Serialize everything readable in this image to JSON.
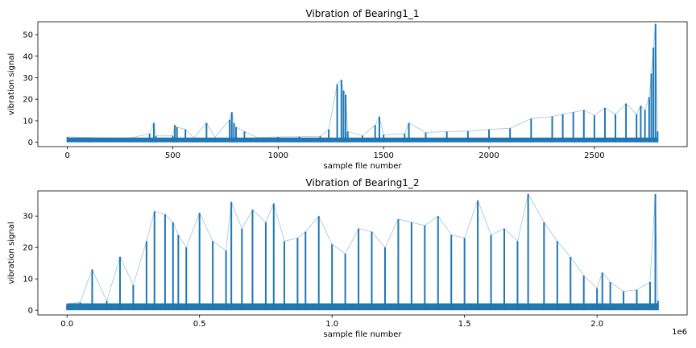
{
  "chart_data": [
    {
      "type": "line",
      "title": "Vibration of Bearing1_1",
      "xlabel": "sample file number",
      "ylabel": "vibration signal",
      "xlim": [
        -140,
        2940
      ],
      "ylim": [
        -2,
        56
      ],
      "x_ticks": [
        0,
        500,
        1000,
        1500,
        2000,
        2500
      ],
      "x_tick_labels": [
        "0",
        "500",
        "1000",
        "1500",
        "2000",
        "2500"
      ],
      "y_ticks": [
        0,
        10,
        20,
        30,
        40,
        50
      ],
      "y_tick_labels": [
        "0",
        "10",
        "20",
        "30",
        "40",
        "50"
      ],
      "grid": false,
      "series": [
        {
          "color": "#1f77b4",
          "x": [
            0,
            100,
            200,
            300,
            390,
            410,
            420,
            500,
            510,
            520,
            560,
            600,
            660,
            700,
            770,
            780,
            790,
            800,
            840,
            900,
            1000,
            1100,
            1200,
            1240,
            1280,
            1300,
            1310,
            1320,
            1330,
            1400,
            1460,
            1480,
            1500,
            1600,
            1620,
            1700,
            1800,
            1900,
            2000,
            2100,
            2200,
            2300,
            2350,
            2400,
            2450,
            2500,
            2550,
            2600,
            2650,
            2700,
            2720,
            2740,
            2760,
            2770,
            2780,
            2790,
            2800
          ],
          "y": [
            2.5,
            2.2,
            2.0,
            2.0,
            4,
            9,
            3,
            3,
            8,
            7,
            6,
            2.0,
            9,
            2.2,
            10.5,
            14,
            9,
            7,
            5,
            2.2,
            2.5,
            2.6,
            2.8,
            6,
            27,
            29,
            24,
            22,
            5,
            3,
            8,
            12,
            3.5,
            4,
            9,
            4.5,
            5,
            5.2,
            6,
            6.5,
            11,
            12,
            13,
            14,
            15,
            12.5,
            16,
            13,
            18,
            13,
            17,
            15,
            21,
            32,
            44,
            55,
            5
          ]
        }
      ]
    },
    {
      "type": "line",
      "title": "Vibration of Bearing1_2",
      "xlabel": "sample file number",
      "ylabel": "vibration signal",
      "x_offset_label": "1e6",
      "xlim": [
        -0.11,
        2.34
      ],
      "ylim": [
        -1.5,
        38
      ],
      "x_ticks": [
        0.0,
        0.5,
        1.0,
        1.5,
        2.0
      ],
      "x_tick_labels": [
        "0.0",
        "0.5",
        "1.0",
        "1.5",
        "2.0"
      ],
      "y_ticks": [
        0,
        10,
        20,
        30
      ],
      "y_tick_labels": [
        "0",
        "10",
        "20",
        "30"
      ],
      "grid": false,
      "series": [
        {
          "color": "#1f77b4",
          "x": [
            0.0,
            0.05,
            0.095,
            0.15,
            0.2,
            0.25,
            0.3,
            0.33,
            0.37,
            0.4,
            0.42,
            0.45,
            0.5,
            0.55,
            0.6,
            0.62,
            0.66,
            0.7,
            0.75,
            0.78,
            0.82,
            0.87,
            0.9,
            0.95,
            1.0,
            1.05,
            1.1,
            1.15,
            1.2,
            1.25,
            1.3,
            1.35,
            1.4,
            1.45,
            1.5,
            1.55,
            1.6,
            1.65,
            1.7,
            1.74,
            1.8,
            1.85,
            1.9,
            1.95,
            2.0,
            2.02,
            2.05,
            2.1,
            2.15,
            2.2,
            2.22,
            2.23
          ],
          "y": [
            2,
            2.5,
            13,
            3,
            17,
            8,
            22,
            31.5,
            30.5,
            28,
            24,
            20,
            31,
            22,
            19,
            34.5,
            26,
            32,
            28,
            34,
            22,
            23,
            25,
            30,
            21,
            18,
            26,
            25,
            20,
            29,
            28,
            27,
            30,
            24,
            23,
            35,
            24,
            26,
            22,
            37,
            28,
            22,
            17,
            11,
            7,
            12,
            9,
            6,
            6.5,
            9,
            37,
            3
          ]
        }
      ]
    }
  ]
}
